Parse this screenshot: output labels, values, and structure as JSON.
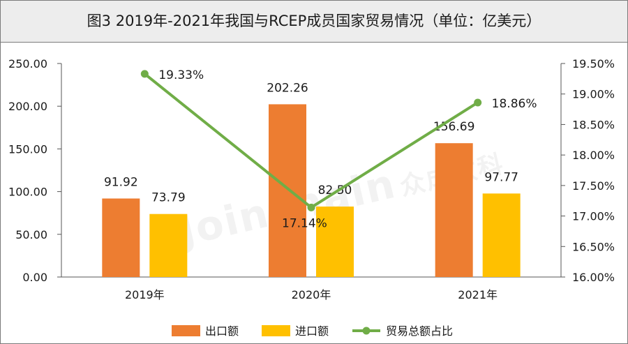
{
  "title": "图3  2019年-2021年我国与RCEP成员国家贸易情况（单位：亿美元）",
  "watermark": {
    "latin": "Joinchain",
    "cn": "众成数科"
  },
  "colors": {
    "export": "#ED7D31",
    "import": "#FFC000",
    "ratio_line": "#70AD47",
    "title_bg": "#EDEDED"
  },
  "chart_data": {
    "type": "bar",
    "categories": [
      "2019年",
      "2020年",
      "2021年"
    ],
    "series": [
      {
        "name": "出口额",
        "kind": "bar",
        "axis": "left",
        "values": [
          91.92,
          202.26,
          156.69
        ],
        "labels": [
          "91.92",
          "202.26",
          "156.69"
        ]
      },
      {
        "name": "进口额",
        "kind": "bar",
        "axis": "left",
        "values": [
          73.79,
          82.5,
          97.77
        ],
        "labels": [
          "73.79",
          "82.50",
          "97.77"
        ]
      },
      {
        "name": "贸易总额占比",
        "kind": "line",
        "axis": "right",
        "values": [
          19.33,
          17.14,
          18.86
        ],
        "labels": [
          "19.33%",
          "17.14%",
          "18.86%"
        ]
      }
    ],
    "y_left": {
      "min": 0,
      "max": 250,
      "ticks": [
        0,
        50,
        100,
        150,
        200,
        250
      ],
      "tick_labels": [
        "0.00",
        "50.00",
        "100.00",
        "150.00",
        "200.00",
        "250.00"
      ]
    },
    "y_right": {
      "min": 16,
      "max": 19.5,
      "ticks": [
        16,
        16.5,
        17,
        17.5,
        18,
        18.5,
        19,
        19.5
      ],
      "tick_labels": [
        "16.00%",
        "16.50%",
        "17.00%",
        "17.50%",
        "18.00%",
        "18.50%",
        "19.00%",
        "19.50%"
      ]
    },
    "grid": false,
    "legend_position": "bottom"
  }
}
